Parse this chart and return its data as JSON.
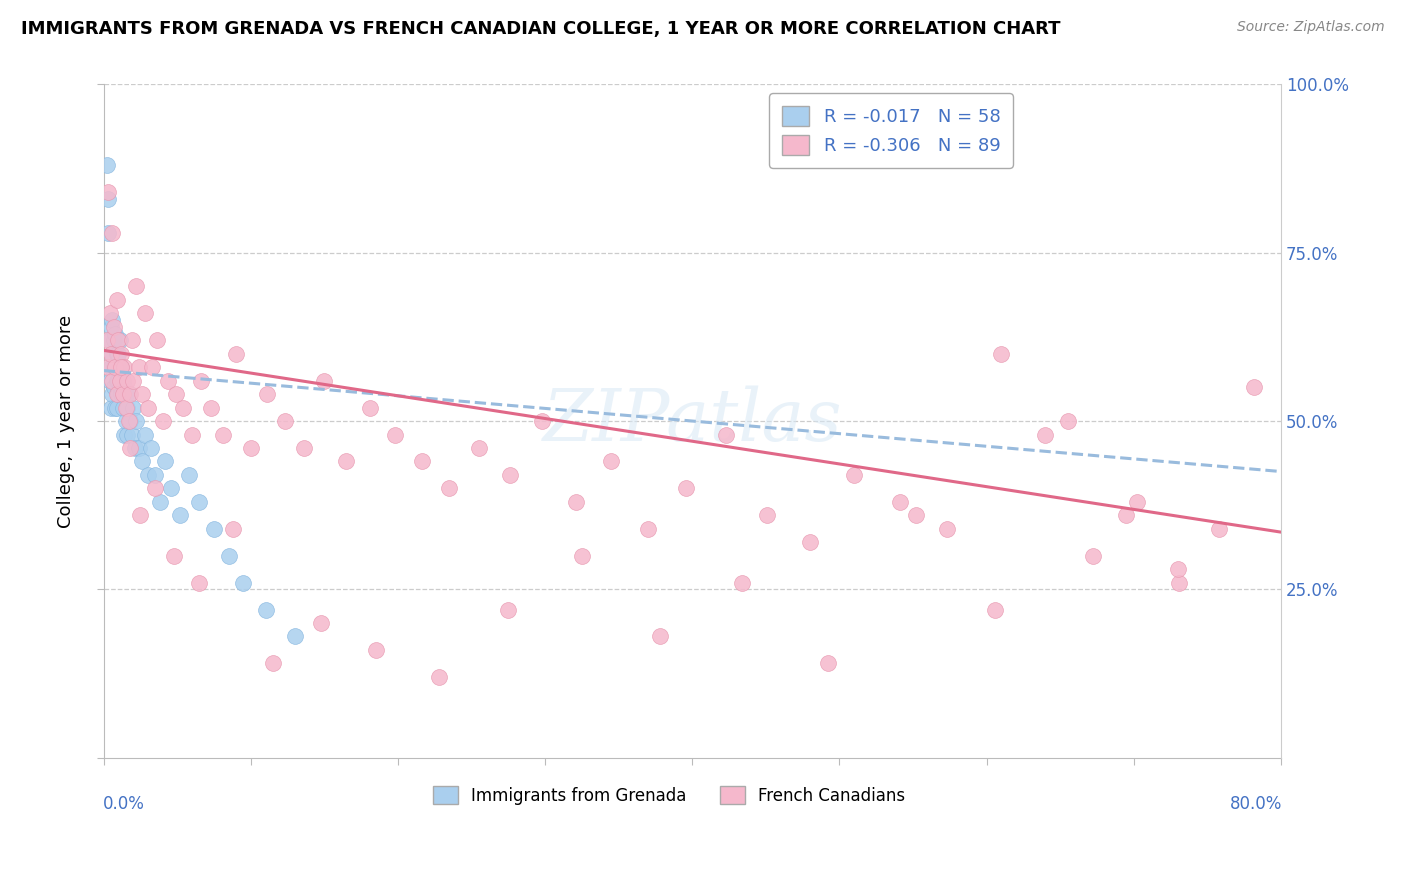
{
  "title": "IMMIGRANTS FROM GRENADA VS FRENCH CANADIAN COLLEGE, 1 YEAR OR MORE CORRELATION CHART",
  "source": "Source: ZipAtlas.com",
  "ylabel": "College, 1 year or more",
  "x_min": 0.0,
  "x_max": 0.8,
  "y_min": 0.0,
  "y_max": 1.0,
  "series1_label": "Immigrants from Grenada",
  "series1_R": "-0.017",
  "series1_N": "58",
  "series1_color": "#aacfee",
  "series1_edge_color": "#88b8e0",
  "series2_label": "French Canadians",
  "series2_R": "-0.306",
  "series2_N": "89",
  "series2_color": "#f5b8cc",
  "series2_edge_color": "#e898b0",
  "trend1_color": "#99bbdd",
  "trend2_color": "#e06888",
  "blue_text_color": "#4472c4",
  "watermark_color": "#d8e8f5",
  "grid_color": "#cccccc",
  "series1_x": [
    0.002,
    0.003,
    0.003,
    0.004,
    0.004,
    0.005,
    0.005,
    0.005,
    0.006,
    0.006,
    0.006,
    0.007,
    0.007,
    0.007,
    0.008,
    0.008,
    0.008,
    0.009,
    0.009,
    0.009,
    0.01,
    0.01,
    0.01,
    0.011,
    0.011,
    0.012,
    0.012,
    0.013,
    0.013,
    0.014,
    0.014,
    0.015,
    0.015,
    0.016,
    0.016,
    0.017,
    0.018,
    0.019,
    0.02,
    0.021,
    0.022,
    0.024,
    0.026,
    0.028,
    0.03,
    0.032,
    0.035,
    0.038,
    0.042,
    0.046,
    0.052,
    0.058,
    0.065,
    0.075,
    0.085,
    0.095,
    0.11,
    0.13
  ],
  "series1_y": [
    0.88,
    0.83,
    0.78,
    0.56,
    0.62,
    0.58,
    0.52,
    0.64,
    0.54,
    0.6,
    0.65,
    0.55,
    0.62,
    0.58,
    0.52,
    0.58,
    0.63,
    0.56,
    0.52,
    0.6,
    0.54,
    0.6,
    0.56,
    0.55,
    0.62,
    0.54,
    0.58,
    0.56,
    0.52,
    0.55,
    0.48,
    0.54,
    0.5,
    0.52,
    0.48,
    0.54,
    0.5,
    0.48,
    0.52,
    0.46,
    0.5,
    0.46,
    0.44,
    0.48,
    0.42,
    0.46,
    0.42,
    0.38,
    0.44,
    0.4,
    0.36,
    0.42,
    0.38,
    0.34,
    0.3,
    0.26,
    0.22,
    0.18
  ],
  "series2_x": [
    0.002,
    0.003,
    0.004,
    0.005,
    0.006,
    0.007,
    0.008,
    0.009,
    0.01,
    0.011,
    0.012,
    0.013,
    0.014,
    0.015,
    0.016,
    0.017,
    0.018,
    0.019,
    0.02,
    0.022,
    0.024,
    0.026,
    0.028,
    0.03,
    0.033,
    0.036,
    0.04,
    0.044,
    0.049,
    0.054,
    0.06,
    0.066,
    0.073,
    0.081,
    0.09,
    0.1,
    0.111,
    0.123,
    0.136,
    0.15,
    0.165,
    0.181,
    0.198,
    0.216,
    0.235,
    0.255,
    0.276,
    0.298,
    0.321,
    0.345,
    0.37,
    0.396,
    0.423,
    0.451,
    0.48,
    0.51,
    0.541,
    0.573,
    0.606,
    0.64,
    0.672,
    0.702,
    0.731,
    0.758,
    0.782,
    0.003,
    0.006,
    0.009,
    0.012,
    0.018,
    0.025,
    0.035,
    0.048,
    0.065,
    0.088,
    0.115,
    0.148,
    0.185,
    0.228,
    0.275,
    0.325,
    0.378,
    0.434,
    0.492,
    0.552,
    0.61,
    0.655,
    0.695,
    0.73
  ],
  "series2_y": [
    0.62,
    0.58,
    0.66,
    0.6,
    0.56,
    0.64,
    0.58,
    0.54,
    0.62,
    0.56,
    0.6,
    0.54,
    0.58,
    0.52,
    0.56,
    0.5,
    0.54,
    0.62,
    0.56,
    0.7,
    0.58,
    0.54,
    0.66,
    0.52,
    0.58,
    0.62,
    0.5,
    0.56,
    0.54,
    0.52,
    0.48,
    0.56,
    0.52,
    0.48,
    0.6,
    0.46,
    0.54,
    0.5,
    0.46,
    0.56,
    0.44,
    0.52,
    0.48,
    0.44,
    0.4,
    0.46,
    0.42,
    0.5,
    0.38,
    0.44,
    0.34,
    0.4,
    0.48,
    0.36,
    0.32,
    0.42,
    0.38,
    0.34,
    0.22,
    0.48,
    0.3,
    0.38,
    0.26,
    0.34,
    0.55,
    0.84,
    0.78,
    0.68,
    0.58,
    0.46,
    0.36,
    0.4,
    0.3,
    0.26,
    0.34,
    0.14,
    0.2,
    0.16,
    0.12,
    0.22,
    0.3,
    0.18,
    0.26,
    0.14,
    0.36,
    0.6,
    0.5,
    0.36,
    0.28
  ],
  "trend1_x_start": 0.0,
  "trend1_x_end": 0.8,
  "trend1_y_start": 0.575,
  "trend1_y_end": 0.425,
  "trend2_x_start": 0.0,
  "trend2_x_end": 0.8,
  "trend2_y_start": 0.605,
  "trend2_y_end": 0.335
}
